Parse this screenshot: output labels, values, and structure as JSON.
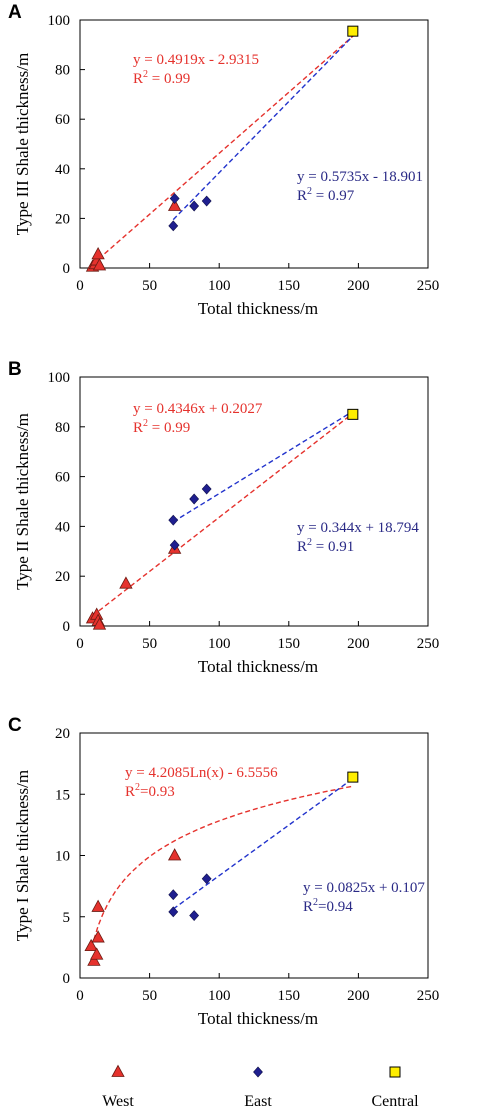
{
  "colors": {
    "west": "#e5322d",
    "east": "#1f1f8f",
    "central": "#ffee00",
    "west_eq": "#e5322d",
    "east_eq": "#2a2a86"
  },
  "legend": [
    {
      "label": "West",
      "marker": "triangle",
      "color": "#e5322d"
    },
    {
      "label": "East",
      "marker": "diamond",
      "color": "#1f1f8f"
    },
    {
      "label": "Central",
      "marker": "square",
      "color": "#ffee00"
    }
  ],
  "chart_data": [
    {
      "panel": "A",
      "type": "scatter",
      "xlabel": "Total thickness/m",
      "ylabel": "Type III Shale thickness/m",
      "xlim": [
        0,
        250
      ],
      "ylim": [
        0,
        100
      ],
      "xticks": [
        0,
        50,
        100,
        150,
        200,
        250
      ],
      "yticks": [
        0,
        20,
        40,
        60,
        80,
        100
      ],
      "series": [
        {
          "name": "West",
          "marker": "triangle",
          "points": [
            [
              9,
              0.5
            ],
            [
              11,
              1.5
            ],
            [
              12,
              3
            ],
            [
              13,
              5.5
            ],
            [
              14,
              1
            ],
            [
              68,
              25
            ]
          ]
        },
        {
          "name": "East",
          "marker": "diamond",
          "points": [
            [
              67,
              17
            ],
            [
              68,
              28
            ],
            [
              82,
              25
            ],
            [
              91,
              27
            ]
          ]
        },
        {
          "name": "Central",
          "marker": "square",
          "points": [
            [
              196,
              95.5
            ]
          ]
        }
      ],
      "fits": [
        {
          "series": "West",
          "kind": "linear",
          "slope": 0.4919,
          "intercept": -2.9315,
          "x_range": [
            9,
            196
          ],
          "equation": "y = 0.4919x - 2.9315",
          "r2_label": "R",
          "r2_value": " = 0.99"
        },
        {
          "series": "East",
          "kind": "linear",
          "slope": 0.5735,
          "intercept": -18.901,
          "x_range": [
            67,
            196
          ],
          "equation": "y = 0.5735x - 18.901",
          "r2_label": "R",
          "r2_value": " = 0.97"
        }
      ]
    },
    {
      "panel": "B",
      "type": "scatter",
      "xlabel": "Total thickness/m",
      "ylabel": "Type II Shale thickness/m",
      "xlim": [
        0,
        250
      ],
      "ylim": [
        0,
        100
      ],
      "xticks": [
        0,
        50,
        100,
        150,
        200,
        250
      ],
      "yticks": [
        0,
        20,
        40,
        60,
        80,
        100
      ],
      "series": [
        {
          "name": "West",
          "marker": "triangle",
          "points": [
            [
              9,
              3
            ],
            [
              12,
              4.5
            ],
            [
              13,
              2
            ],
            [
              14,
              0.5
            ],
            [
              33,
              17
            ],
            [
              68,
              31
            ]
          ]
        },
        {
          "name": "East",
          "marker": "diamond",
          "points": [
            [
              67,
              42.5
            ],
            [
              68,
              32.5
            ],
            [
              82,
              51
            ],
            [
              91,
              55
            ]
          ]
        },
        {
          "name": "Central",
          "marker": "square",
          "points": [
            [
              196,
              85
            ]
          ]
        }
      ],
      "fits": [
        {
          "series": "West",
          "kind": "linear",
          "slope": 0.4346,
          "intercept": 0.2027,
          "x_range": [
            9,
            196
          ],
          "equation": "y = 0.4346x + 0.2027",
          "r2_label": "R",
          "r2_value": " = 0.99"
        },
        {
          "series": "East",
          "kind": "linear",
          "slope": 0.344,
          "intercept": 18.794,
          "x_range": [
            67,
            196
          ],
          "equation": "y = 0.344x + 18.794",
          "r2_label": "R",
          "r2_value": " = 0.91"
        }
      ]
    },
    {
      "panel": "C",
      "type": "scatter",
      "xlabel": "Total thickness/m",
      "ylabel": "Type I Shale thickness/m",
      "xlim": [
        0,
        250
      ],
      "ylim": [
        0,
        20
      ],
      "xticks": [
        0,
        50,
        100,
        150,
        200,
        250
      ],
      "yticks": [
        0,
        5,
        10,
        15,
        20
      ],
      "series": [
        {
          "name": "West",
          "marker": "triangle",
          "points": [
            [
              8,
              2.6
            ],
            [
              10,
              1.4
            ],
            [
              12,
              1.9
            ],
            [
              13,
              3.3
            ],
            [
              13,
              5.8
            ],
            [
              68,
              10
            ]
          ]
        },
        {
          "name": "East",
          "marker": "diamond",
          "points": [
            [
              67,
              5.4
            ],
            [
              67,
              6.8
            ],
            [
              82,
              5.1
            ],
            [
              91,
              8.1
            ]
          ]
        },
        {
          "name": "Central",
          "marker": "square",
          "points": [
            [
              196,
              16.4
            ]
          ]
        }
      ],
      "fits": [
        {
          "series": "West",
          "kind": "log",
          "a": 4.2085,
          "b": -6.5556,
          "x_range": [
            10,
            196
          ],
          "equation": "y = 4.2085Ln(x) - 6.5556",
          "r2_label": "R",
          "r2_value": "=0.93"
        },
        {
          "series": "East",
          "kind": "linear",
          "slope": 0.0825,
          "intercept": 0.107,
          "x_range": [
            67,
            196
          ],
          "equation": "y = 0.0825x + 0.107",
          "r2_label": "R",
          "r2_value": "=0.94"
        }
      ]
    }
  ]
}
